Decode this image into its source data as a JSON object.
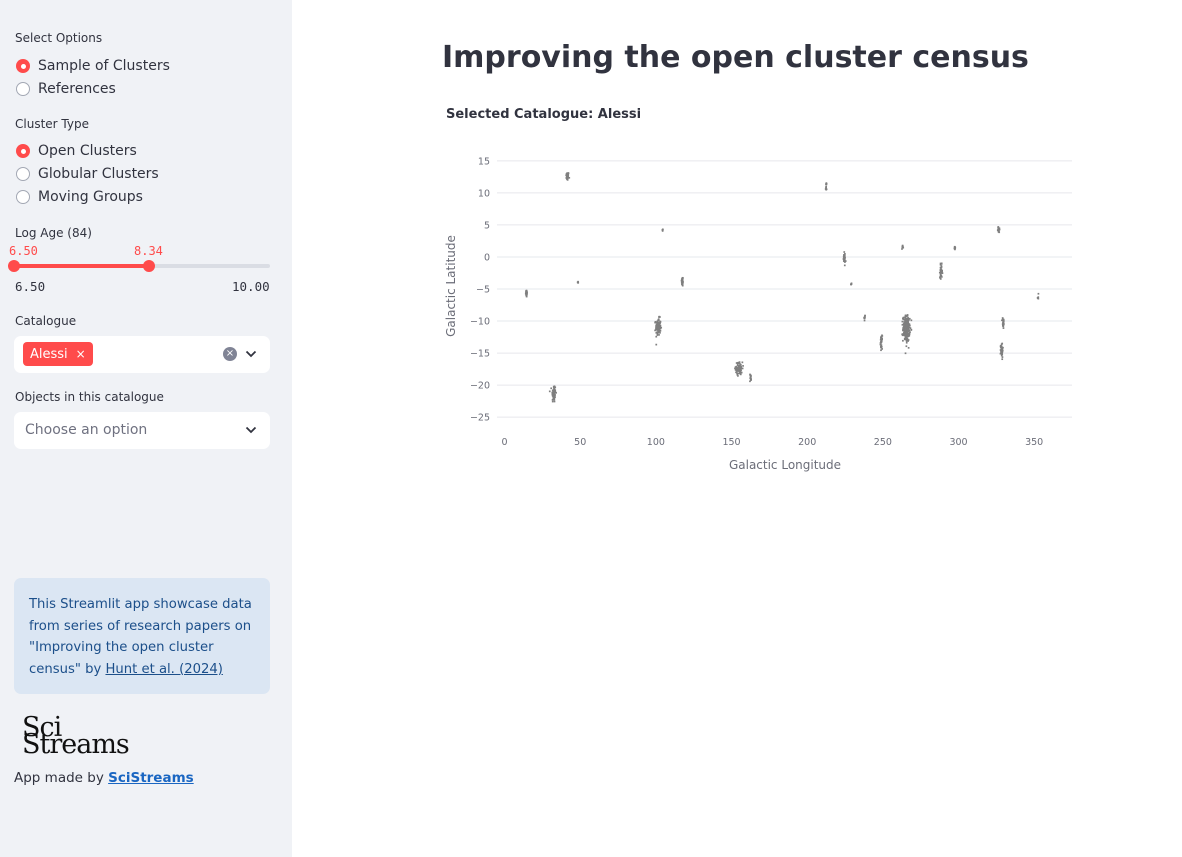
{
  "sidebar": {
    "options_label": "Select Options",
    "options": [
      {
        "label": "Sample of Clusters",
        "selected": true
      },
      {
        "label": "References",
        "selected": false
      }
    ],
    "cluster_type_label": "Cluster Type",
    "cluster_types": [
      {
        "label": "Open Clusters",
        "selected": true
      },
      {
        "label": "Globular Clusters",
        "selected": false
      },
      {
        "label": "Moving Groups",
        "selected": false
      }
    ],
    "log_age": {
      "label": "Log Age (84)",
      "low_value": "6.50",
      "high_value": "8.34",
      "min": "6.50",
      "max": "10.00",
      "low_fraction": 0,
      "high_fraction": 0.526
    },
    "catalogue_label": "Catalogue",
    "catalogue_tag": "Alessi",
    "tag_remove_glyph": "×",
    "clear_glyph": "×",
    "objects_label": "Objects in this catalogue",
    "objects_placeholder": "Choose an option",
    "info": {
      "text": "This Streamlit app showcase data from series of research papers on \"Improving the open cluster census\" by",
      "link": "Hunt et al. (2024)"
    },
    "logo": {
      "line1": "Sci",
      "line2": "Streams"
    },
    "made_by_text": "App made by",
    "made_by_link": "SciStreams"
  },
  "main": {
    "title": "Improving the open cluster census",
    "chart_title": "Selected Catalogue: Alessi"
  },
  "colors": {
    "accent": "#ff4b4b",
    "points": "#7f7f7f",
    "info_bg": "#dbe6f3",
    "sidebar_bg": "#f0f2f6"
  },
  "chart_data": {
    "type": "scatter",
    "xlabel": "Galactic Longitude",
    "ylabel": "Galactic Latitude",
    "xlim": [
      -5,
      375
    ],
    "ylim": [
      -27,
      17
    ],
    "xticks": [
      0,
      50,
      100,
      150,
      200,
      250,
      300,
      350
    ],
    "yticks": [
      15,
      10,
      5,
      0,
      -5,
      -10,
      -15,
      -20,
      -25
    ],
    "grid": true,
    "clusters": [
      {
        "l": 41.5,
        "b": 12.6,
        "sl": 0.8,
        "sb": 0.6,
        "n": 45
      },
      {
        "l": 14.5,
        "b": -5.7,
        "sl": 0.5,
        "sb": 0.5,
        "n": 25
      },
      {
        "l": 48.5,
        "b": -3.9,
        "sl": 0.2,
        "sb": 0.2,
        "n": 5
      },
      {
        "l": 32.5,
        "b": -21.3,
        "sl": 1.2,
        "sb": 1.3,
        "n": 60
      },
      {
        "l": 104.5,
        "b": 4.2,
        "sl": 0.3,
        "sb": 0.2,
        "n": 6
      },
      {
        "l": 117.5,
        "b": -3.8,
        "sl": 0.5,
        "sb": 0.7,
        "n": 25
      },
      {
        "l": 101.5,
        "b": -10.9,
        "sl": 1.5,
        "sb": 1.2,
        "n": 110
      },
      {
        "l": 155.0,
        "b": -17.4,
        "sl": 2.0,
        "sb": 0.9,
        "n": 75
      },
      {
        "l": 162.5,
        "b": -18.8,
        "sl": 0.4,
        "sb": 0.6,
        "n": 15
      },
      {
        "l": 212.5,
        "b": 10.9,
        "sl": 0.3,
        "sb": 0.7,
        "n": 12
      },
      {
        "l": 224.5,
        "b": -0.2,
        "sl": 0.6,
        "sb": 0.7,
        "n": 35
      },
      {
        "l": 229.0,
        "b": -4.2,
        "sl": 0.3,
        "sb": 0.2,
        "n": 5
      },
      {
        "l": 238.0,
        "b": -9.4,
        "sl": 0.3,
        "sb": 0.4,
        "n": 10
      },
      {
        "l": 249.0,
        "b": -13.3,
        "sl": 0.5,
        "sb": 0.9,
        "n": 30
      },
      {
        "l": 265.5,
        "b": -11.2,
        "sl": 2.0,
        "sb": 1.8,
        "n": 280
      },
      {
        "l": 263.0,
        "b": 1.6,
        "sl": 0.4,
        "sb": 0.3,
        "n": 12
      },
      {
        "l": 288.5,
        "b": -2.2,
        "sl": 0.7,
        "sb": 0.9,
        "n": 40
      },
      {
        "l": 297.5,
        "b": 1.3,
        "sl": 0.3,
        "sb": 0.4,
        "n": 10
      },
      {
        "l": 326.5,
        "b": 4.3,
        "sl": 0.5,
        "sb": 0.5,
        "n": 18
      },
      {
        "l": 329.5,
        "b": -10.3,
        "sl": 0.6,
        "sb": 0.8,
        "n": 25
      },
      {
        "l": 328.5,
        "b": -14.5,
        "sl": 0.7,
        "sb": 1.0,
        "n": 45
      },
      {
        "l": 352.5,
        "b": -6.3,
        "sl": 0.3,
        "sb": 0.3,
        "n": 6
      }
    ]
  }
}
